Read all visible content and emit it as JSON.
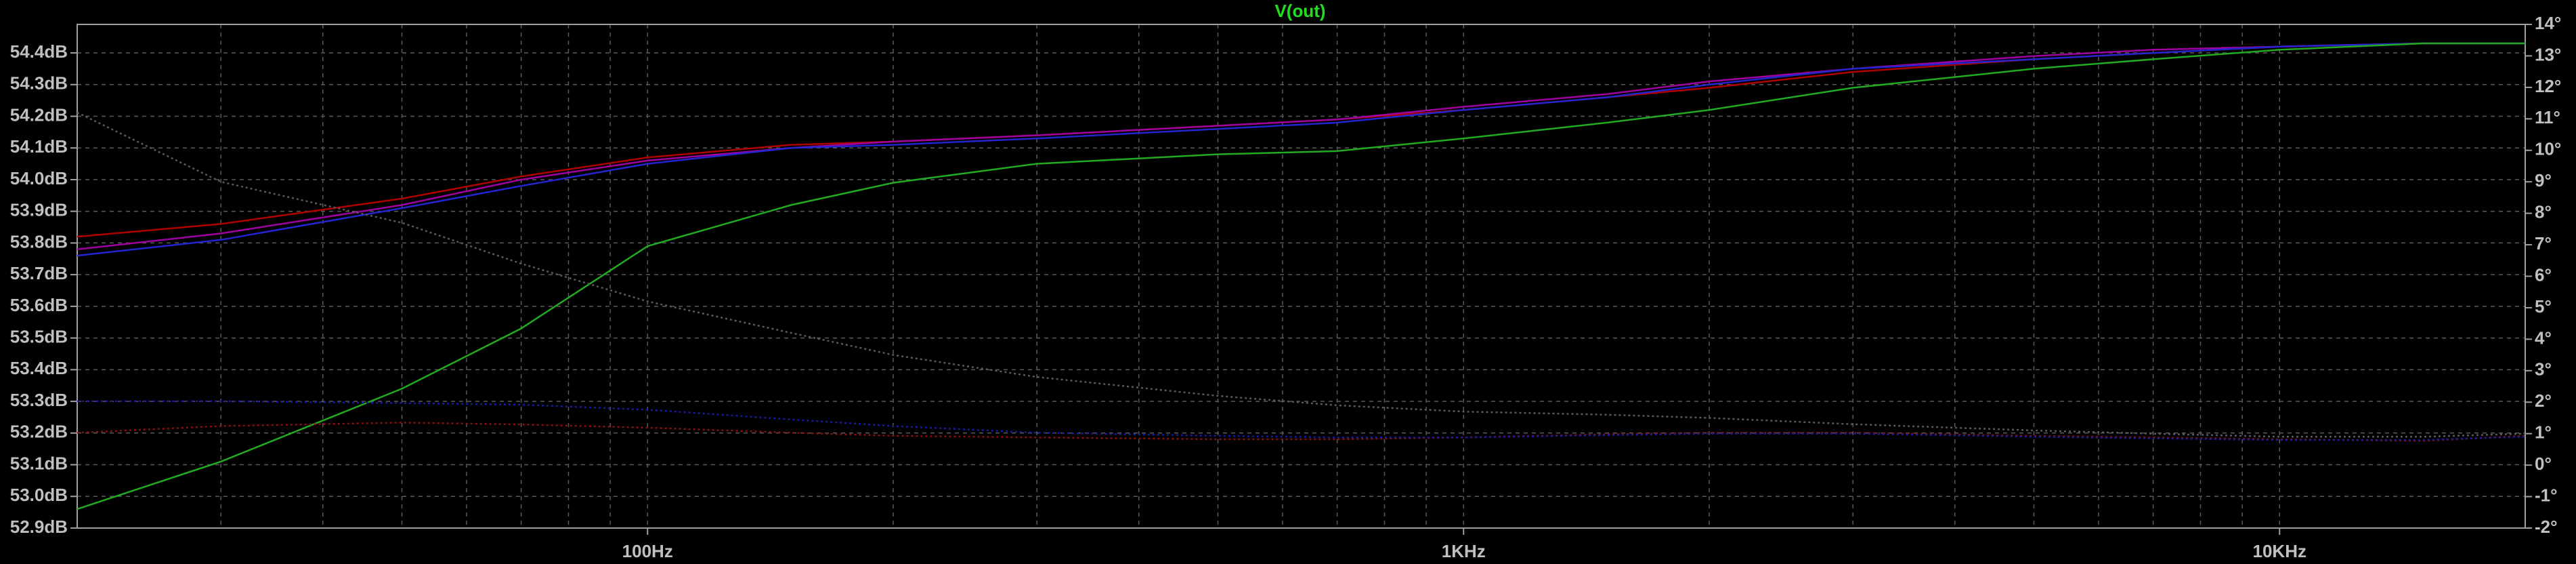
{
  "chart_data": {
    "type": "line",
    "title": "V(out)",
    "xscale": "log",
    "grid": true,
    "x": [
      20,
      30,
      50,
      70,
      100,
      150,
      200,
      300,
      500,
      700,
      1000,
      1500,
      2000,
      3000,
      5000,
      7000,
      10000,
      15000,
      20000
    ],
    "xlim": [
      20,
      20000
    ],
    "xticks": [
      {
        "value": 100,
        "label": "100Hz"
      },
      {
        "value": 1000,
        "label": "1KHz"
      },
      {
        "value": 10000,
        "label": "10KHz"
      }
    ],
    "ylim": [
      52.9,
      54.49
    ],
    "yticks": [
      {
        "value": 52.9,
        "label": "52.9dB"
      },
      {
        "value": 53.0,
        "label": "53.0dB"
      },
      {
        "value": 53.1,
        "label": "53.1dB"
      },
      {
        "value": 53.2,
        "label": "53.2dB"
      },
      {
        "value": 53.3,
        "label": "53.3dB"
      },
      {
        "value": 53.4,
        "label": "53.4dB"
      },
      {
        "value": 53.5,
        "label": "53.5dB"
      },
      {
        "value": 53.6,
        "label": "53.6dB"
      },
      {
        "value": 53.7,
        "label": "53.7dB"
      },
      {
        "value": 53.8,
        "label": "53.8dB"
      },
      {
        "value": 53.9,
        "label": "53.9dB"
      },
      {
        "value": 54.0,
        "label": "54.0dB"
      },
      {
        "value": 54.1,
        "label": "54.1dB"
      },
      {
        "value": 54.2,
        "label": "54.2dB"
      },
      {
        "value": 54.3,
        "label": "54.3dB"
      },
      {
        "value": 54.4,
        "label": "54.4dB"
      }
    ],
    "y2lim": [
      -2,
      14
    ],
    "y2ticks": [
      {
        "value": -2,
        "label": "-2°"
      },
      {
        "value": -1,
        "label": "-1°"
      },
      {
        "value": 0,
        "label": "0°"
      },
      {
        "value": 1,
        "label": "1°"
      },
      {
        "value": 2,
        "label": "2°"
      },
      {
        "value": 3,
        "label": "3°"
      },
      {
        "value": 4,
        "label": "4°"
      },
      {
        "value": 5,
        "label": "5°"
      },
      {
        "value": 6,
        "label": "6°"
      },
      {
        "value": 7,
        "label": "7°"
      },
      {
        "value": 8,
        "label": "8°"
      },
      {
        "value": 9,
        "label": "9°"
      },
      {
        "value": 10,
        "label": "10°"
      },
      {
        "value": 11,
        "label": "11°"
      },
      {
        "value": 12,
        "label": "12°"
      },
      {
        "value": 13,
        "label": "13°"
      },
      {
        "value": 14,
        "label": "14°"
      }
    ],
    "series": [
      {
        "color": "#b00000",
        "values": [
          53.82,
          53.86,
          53.94,
          54.01,
          54.07,
          54.11,
          54.12,
          54.14,
          54.17,
          54.19,
          54.22,
          54.26,
          54.29,
          54.34,
          54.38,
          54.4,
          54.42,
          54.43,
          54.43
        ]
      },
      {
        "color": "#a000a0",
        "values": [
          53.78,
          53.83,
          53.92,
          54.0,
          54.06,
          54.1,
          54.12,
          54.14,
          54.17,
          54.19,
          54.23,
          54.27,
          54.31,
          54.35,
          54.39,
          54.41,
          54.42,
          54.43,
          54.43
        ]
      },
      {
        "color": "#2424d0",
        "values": [
          53.76,
          53.81,
          53.91,
          53.98,
          54.05,
          54.1,
          54.11,
          54.13,
          54.16,
          54.18,
          54.22,
          54.26,
          54.3,
          54.35,
          54.38,
          54.4,
          54.42,
          54.43,
          54.43
        ]
      },
      {
        "color": "#22aa22",
        "values": [
          52.96,
          53.11,
          53.34,
          53.53,
          53.79,
          53.92,
          53.99,
          54.05,
          54.08,
          54.09,
          54.13,
          54.18,
          54.22,
          54.29,
          54.35,
          54.38,
          54.41,
          54.43,
          54.43
        ]
      },
      {
        "color": "#5a5a5a",
        "axis": "y2",
        "dashed": true,
        "values": [
          11.2,
          9.0,
          7.7,
          6.4,
          5.2,
          4.2,
          3.5,
          2.8,
          2.2,
          1.9,
          1.7,
          1.6,
          1.5,
          1.3,
          1.1,
          1.0,
          0.9,
          0.9,
          1.0
        ]
      },
      {
        "color": "#8a1010",
        "axis": "y2",
        "dashed": true,
        "values": [
          1.03,
          1.24,
          1.35,
          1.29,
          1.19,
          1.03,
          0.93,
          0.88,
          0.82,
          0.82,
          0.88,
          0.98,
          1.03,
          1.03,
          0.93,
          0.88,
          0.82,
          0.77,
          0.93
        ]
      },
      {
        "color": "#1a1aa0",
        "axis": "y2",
        "dashed": true,
        "values": [
          2.03,
          2.03,
          1.97,
          1.92,
          1.76,
          1.45,
          1.24,
          1.03,
          0.93,
          0.88,
          0.88,
          0.95,
          1.0,
          1.0,
          0.9,
          0.85,
          0.8,
          0.8,
          0.9
        ]
      }
    ]
  }
}
